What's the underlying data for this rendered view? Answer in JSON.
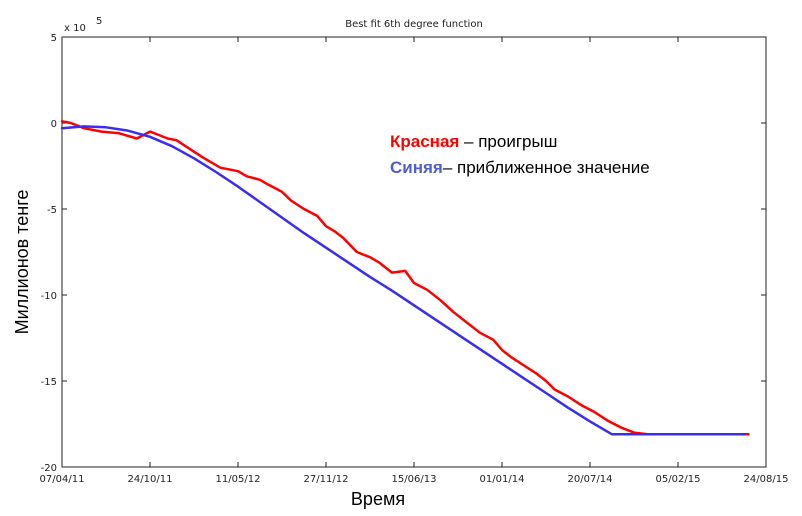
{
  "chart_data": {
    "type": "line",
    "title": "Best fit 6th degree function",
    "xlabel": "Время",
    "ylabel": "Миллионов тенге",
    "y_exponent_label": "x 10",
    "y_exponent_power": "5",
    "ylim": [
      -20,
      5
    ],
    "y_ticks": [
      5,
      0,
      -5,
      -10,
      -15,
      -20
    ],
    "y_tick_labels": [
      "5",
      "0",
      "-5",
      "-10",
      "-15",
      "-20"
    ],
    "x_tick_labels": [
      "07/04/11",
      "24/10/11",
      "11/05/12",
      "27/11/12",
      "15/06/13",
      "01/01/14",
      "20/07/14",
      "05/02/15",
      "24/08/15"
    ],
    "xlim": [
      0,
      8
    ],
    "grid": false,
    "legend_position": "top-right",
    "legend": [
      {
        "name": "Красная",
        "suffix": " – проигрыш",
        "color": "#ff0000"
      },
      {
        "name": "Синяя",
        "suffix": "– приближенное значение",
        "color": "#4d5fd0"
      }
    ],
    "series": [
      {
        "name": "Красная",
        "color": "#ff0000",
        "x": [
          0.0,
          0.1,
          0.25,
          0.45,
          0.65,
          0.85,
          1.0,
          1.1,
          1.2,
          1.3,
          1.45,
          1.6,
          1.8,
          2.0,
          2.1,
          2.25,
          2.35,
          2.5,
          2.6,
          2.75,
          2.9,
          3.0,
          3.1,
          3.2,
          3.35,
          3.5,
          3.6,
          3.75,
          3.9,
          4.0,
          4.15,
          4.3,
          4.45,
          4.6,
          4.75,
          4.9,
          5.0,
          5.1,
          5.25,
          5.4,
          5.5,
          5.6,
          5.75,
          5.9,
          6.05,
          6.2,
          6.35,
          6.5,
          6.65,
          6.8,
          6.95,
          7.1,
          7.25,
          7.4,
          7.6,
          7.8
        ],
        "y": [
          0.1,
          0.0,
          -0.3,
          -0.5,
          -0.6,
          -0.9,
          -0.5,
          -0.7,
          -0.9,
          -1.0,
          -1.5,
          -2.0,
          -2.6,
          -2.8,
          -3.1,
          -3.3,
          -3.6,
          -4.0,
          -4.5,
          -5.0,
          -5.4,
          -6.0,
          -6.3,
          -6.7,
          -7.5,
          -7.8,
          -8.1,
          -8.7,
          -8.6,
          -9.3,
          -9.7,
          -10.3,
          -11.0,
          -11.6,
          -12.2,
          -12.6,
          -13.2,
          -13.6,
          -14.1,
          -14.6,
          -15.0,
          -15.5,
          -15.9,
          -16.4,
          -16.8,
          -17.3,
          -17.7,
          -18.0,
          -18.1,
          -18.1,
          -18.1,
          -18.1,
          -18.1,
          -18.1,
          -18.1,
          -18.1
        ]
      },
      {
        "name": "Синяя",
        "color": "#3a2cf0",
        "x": [
          0.0,
          0.25,
          0.5,
          0.75,
          1.0,
          1.25,
          1.5,
          1.75,
          2.0,
          2.25,
          2.5,
          2.75,
          3.0,
          3.25,
          3.5,
          3.75,
          4.0,
          4.25,
          4.5,
          4.75,
          5.0,
          5.25,
          5.5,
          5.75,
          6.0,
          6.25,
          6.5,
          6.75,
          7.0,
          7.25,
          7.5,
          7.75
        ],
        "y": [
          -0.3,
          -0.2,
          -0.25,
          -0.45,
          -0.8,
          -1.35,
          -2.05,
          -2.85,
          -3.7,
          -4.6,
          -5.5,
          -6.4,
          -7.25,
          -8.1,
          -8.95,
          -9.75,
          -10.6,
          -11.45,
          -12.3,
          -13.15,
          -14.0,
          -14.85,
          -15.7,
          -16.55,
          -17.35,
          -18.1,
          -18.1,
          -18.1,
          -18.1,
          -18.1,
          -18.1,
          -18.1
        ]
      }
    ]
  }
}
